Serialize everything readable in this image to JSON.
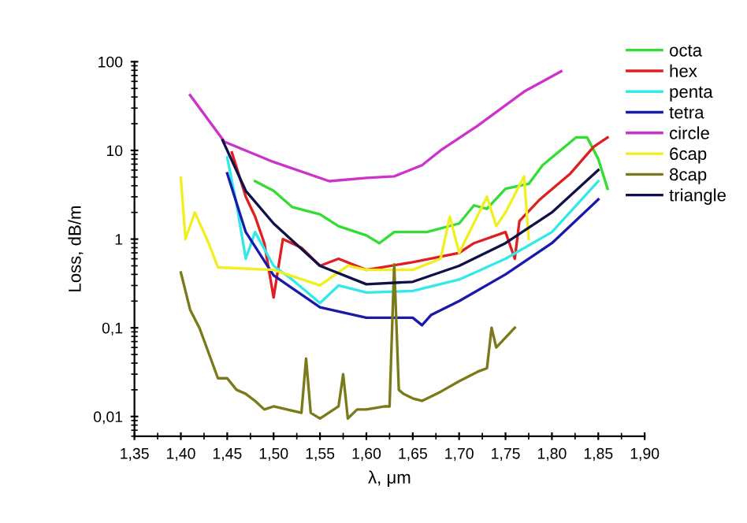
{
  "chart_data": {
    "type": "line",
    "xlabel": "λ, μm",
    "ylabel": "Loss, dB/m",
    "log": "y",
    "grid": false,
    "legend": "top right",
    "marker": "none",
    "line_style": "solid",
    "xlim": [
      1.35,
      1.9
    ],
    "ylim": [
      0.006,
      100
    ],
    "xticks": [
      {
        "value": 1.35,
        "label": "1,35"
      },
      {
        "value": 1.4,
        "label": "1,40"
      },
      {
        "value": 1.45,
        "label": "1,45"
      },
      {
        "value": 1.5,
        "label": "1,50"
      },
      {
        "value": 1.55,
        "label": "1,55"
      },
      {
        "value": 1.6,
        "label": "1,60"
      },
      {
        "value": 1.65,
        "label": "1,65"
      },
      {
        "value": 1.7,
        "label": "1,70"
      },
      {
        "value": 1.75,
        "label": "1,75"
      },
      {
        "value": 1.8,
        "label": "1,80"
      },
      {
        "value": 1.85,
        "label": "1,85"
      },
      {
        "value": 1.9,
        "label": "1,90"
      }
    ],
    "yticks": [
      {
        "value": 0.01,
        "label": "0,01"
      },
      {
        "value": 0.1,
        "label": "0,1"
      },
      1,
      10,
      100
    ],
    "series": [
      {
        "name": "octa",
        "color": "#33dd33",
        "x": [
          1.48,
          1.5,
          1.52,
          1.55,
          1.57,
          1.6,
          1.614,
          1.63,
          1.665,
          1.7,
          1.716,
          1.73,
          1.75,
          1.775,
          1.79,
          1.826,
          1.838,
          1.85,
          1.86
        ],
        "values": [
          4.5,
          3.5,
          2.3,
          1.9,
          1.4,
          1.1,
          0.9,
          1.2,
          1.2,
          1.5,
          2.4,
          2.2,
          3.7,
          4.2,
          6.8,
          14,
          14,
          8,
          3.7
        ]
      },
      {
        "name": "hex",
        "color": "#e02020",
        "x": [
          1.455,
          1.47,
          1.48,
          1.49,
          1.5,
          1.51,
          1.53,
          1.55,
          1.57,
          1.6,
          1.65,
          1.7,
          1.716,
          1.75,
          1.76,
          1.765,
          1.787,
          1.82,
          1.845,
          1.86
        ],
        "values": [
          9.5,
          3,
          1.8,
          0.9,
          0.22,
          1.0,
          0.8,
          0.5,
          0.6,
          0.45,
          0.55,
          0.7,
          0.9,
          1.2,
          0.6,
          1.6,
          2.8,
          5.5,
          11,
          14
        ]
      },
      {
        "name": "penta",
        "color": "#33e8e8",
        "x": [
          1.45,
          1.46,
          1.47,
          1.48,
          1.5,
          1.52,
          1.55,
          1.57,
          1.6,
          1.65,
          1.7,
          1.75,
          1.8,
          1.85
        ],
        "values": [
          8.3,
          2.5,
          0.6,
          1.2,
          0.5,
          0.35,
          0.19,
          0.3,
          0.25,
          0.26,
          0.35,
          0.6,
          1.2,
          4.5
        ]
      },
      {
        "name": "tetra",
        "color": "#1a1aaa",
        "x": [
          1.45,
          1.47,
          1.5,
          1.55,
          1.6,
          1.65,
          1.66,
          1.67,
          1.7,
          1.75,
          1.8,
          1.85
        ],
        "values": [
          5.5,
          1.2,
          0.39,
          0.17,
          0.13,
          0.13,
          0.107,
          0.14,
          0.2,
          0.4,
          0.9,
          2.8
        ]
      },
      {
        "name": "circle",
        "color": "#cc33cc",
        "x": [
          1.41,
          1.447,
          1.5,
          1.56,
          1.6,
          1.63,
          1.66,
          1.68,
          1.72,
          1.77,
          1.81
        ],
        "values": [
          42,
          12.5,
          7.4,
          4.5,
          4.9,
          5.1,
          6.8,
          10,
          19,
          46,
          78
        ]
      },
      {
        "name": "6cap",
        "color": "#f0f020",
        "x": [
          1.4,
          1.405,
          1.415,
          1.43,
          1.44,
          1.5,
          1.55,
          1.58,
          1.6,
          1.65,
          1.68,
          1.69,
          1.7,
          1.73,
          1.74,
          1.75,
          1.77,
          1.775
        ],
        "values": [
          4.9,
          1.0,
          2.0,
          0.9,
          0.48,
          0.45,
          0.3,
          0.5,
          0.45,
          0.45,
          0.6,
          1.8,
          0.7,
          3.0,
          1.4,
          2.0,
          5.1,
          1.0
        ]
      },
      {
        "name": "8cap",
        "color": "#7a7a1a",
        "x": [
          1.4,
          1.41,
          1.42,
          1.44,
          1.45,
          1.46,
          1.47,
          1.48,
          1.49,
          1.5,
          1.53,
          1.535,
          1.54,
          1.55,
          1.57,
          1.575,
          1.58,
          1.59,
          1.6,
          1.62,
          1.625,
          1.63,
          1.635,
          1.64,
          1.65,
          1.66,
          1.68,
          1.7,
          1.72,
          1.73,
          1.735,
          1.74,
          1.76
        ],
        "values": [
          0.42,
          0.16,
          0.1,
          0.027,
          0.027,
          0.02,
          0.018,
          0.015,
          0.012,
          0.013,
          0.011,
          0.045,
          0.011,
          0.0095,
          0.013,
          0.03,
          0.0095,
          0.012,
          0.012,
          0.013,
          0.013,
          0.52,
          0.02,
          0.018,
          0.016,
          0.015,
          0.019,
          0.025,
          0.032,
          0.035,
          0.1,
          0.06,
          0.1
        ]
      },
      {
        "name": "triangle",
        "color": "#10104a",
        "x": [
          1.445,
          1.47,
          1.5,
          1.55,
          1.6,
          1.65,
          1.7,
          1.75,
          1.8,
          1.85
        ],
        "values": [
          13,
          3.5,
          1.5,
          0.5,
          0.31,
          0.33,
          0.5,
          0.9,
          2.0,
          6.0
        ]
      }
    ]
  }
}
